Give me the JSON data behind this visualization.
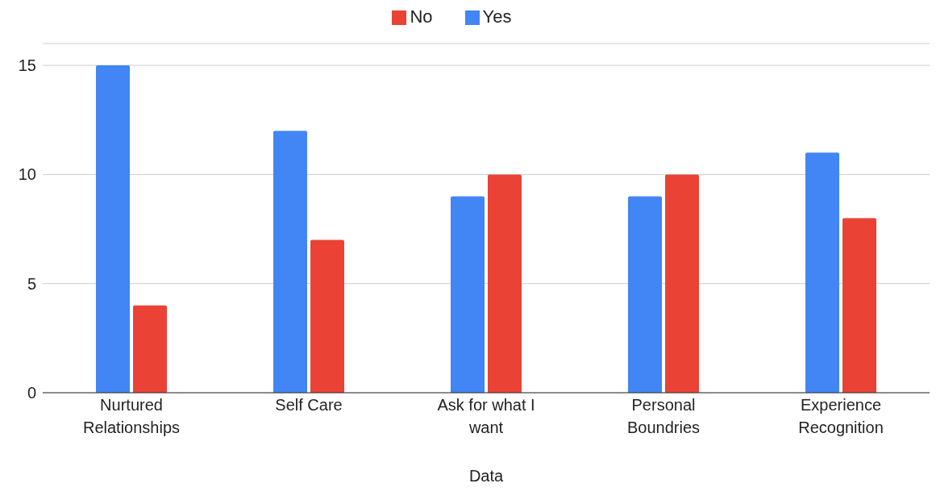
{
  "chart_data": {
    "type": "bar",
    "xlabel": "Data",
    "categories": [
      "Nurtured Relationships",
      "Self Care",
      "Ask for what I want",
      "Personal Boundries",
      "Experience Recognition"
    ],
    "series": [
      {
        "name": "Yes",
        "color": "#4285f4",
        "values": [
          15,
          12,
          9,
          9,
          11
        ]
      },
      {
        "name": "No",
        "color": "#ea4335",
        "values": [
          4,
          7,
          10,
          10,
          8
        ]
      }
    ],
    "ylim": [
      0,
      16
    ],
    "yticks": [
      0,
      5,
      10,
      15
    ],
    "grid": "y",
    "legend": "top"
  }
}
